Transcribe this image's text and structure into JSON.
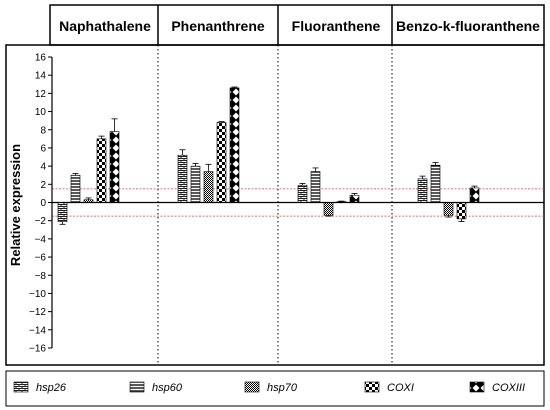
{
  "chart_data": {
    "type": "bar",
    "categories": [
      "Naphathalene",
      "Phenanthrene",
      "Fluoranthene",
      "Benzo-k-fluoranthene"
    ],
    "ylabel": "Relative expression",
    "ylim": [
      -16,
      16
    ],
    "yticks": [
      16,
      14,
      12,
      10,
      8,
      6,
      4,
      2,
      0,
      -2,
      -4,
      -6,
      -8,
      -10,
      -12,
      -14,
      -16
    ],
    "threshold_lines": [
      1.5,
      -1.5
    ],
    "threshold_color": "#e04040",
    "legend_placement": "bottom",
    "series": [
      {
        "name": "hsp26",
        "pattern": "brick",
        "values": [
          -2.1,
          5.2,
          1.9,
          2.6
        ],
        "errors": [
          0.3,
          0.6,
          0.2,
          0.3
        ]
      },
      {
        "name": "hsp60",
        "pattern": "hlines",
        "values": [
          3.0,
          4.0,
          3.4,
          4.1
        ],
        "errors": [
          0.2,
          0.3,
          0.4,
          0.3
        ]
      },
      {
        "name": "hsp70",
        "pattern": "fine-check",
        "values": [
          0.3,
          3.4,
          -1.4,
          -1.4
        ],
        "errors": [
          0.2,
          0.8,
          0.1,
          0.2
        ]
      },
      {
        "name": "COXI",
        "pattern": "checker",
        "values": [
          7.0,
          8.8,
          0.1,
          -1.8
        ],
        "errors": [
          0.3,
          0.1,
          0.05,
          0.3
        ]
      },
      {
        "name": "COXIII",
        "pattern": "diamond",
        "values": [
          7.8,
          12.6,
          0.8,
          1.6
        ],
        "errors": [
          1.4,
          0.1,
          0.2,
          0.2
        ]
      }
    ]
  }
}
